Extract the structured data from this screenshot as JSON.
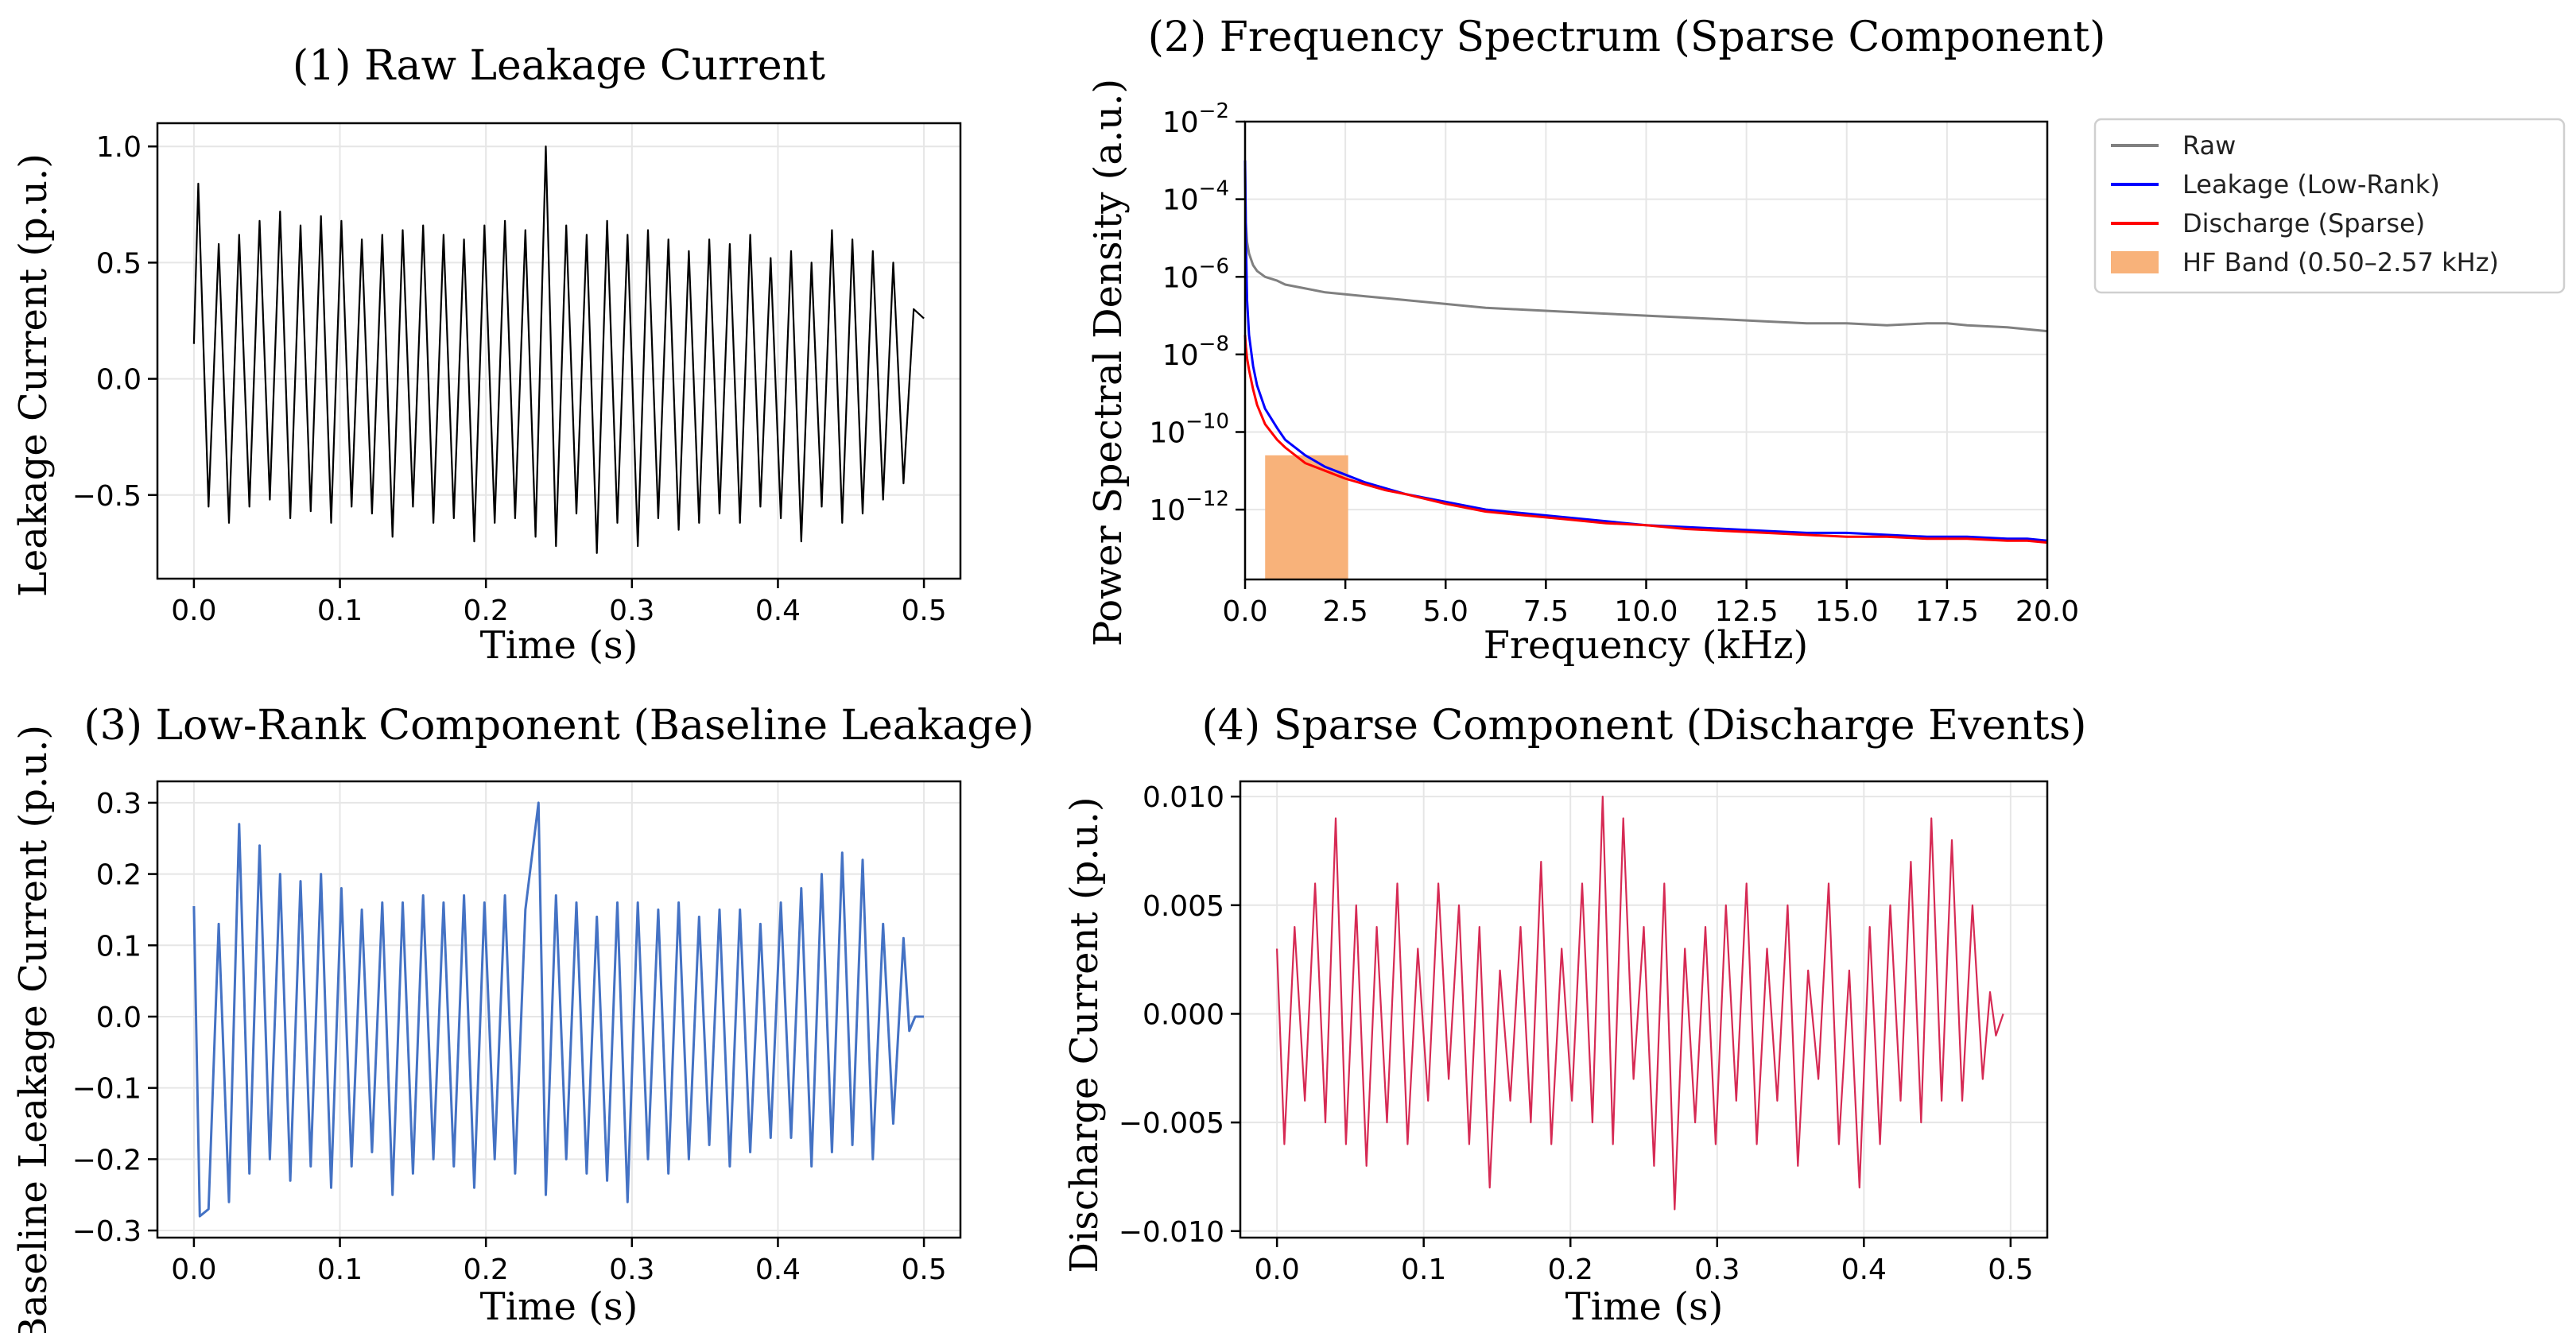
{
  "chart_data": [
    {
      "type": "line",
      "title": "(1) Raw Leakage Current",
      "xlabel": "Time (s)",
      "ylabel": "Leakage Current (p.u.)",
      "xlim": [
        -0.025,
        0.525
      ],
      "ylim": [
        -0.86,
        1.1
      ],
      "xticks": [
        0.0,
        0.1,
        0.2,
        0.3,
        0.4,
        0.5
      ],
      "xtick_labels": [
        "0.0",
        "0.1",
        "0.2",
        "0.3",
        "0.4",
        "0.5"
      ],
      "yticks": [
        -0.5,
        0.0,
        0.5,
        1.0
      ],
      "ytick_labels": [
        "−0.5",
        "0.0",
        "0.5",
        "1.0"
      ],
      "grid": true,
      "series": [
        {
          "color": "#000000",
          "x": [
            0.0,
            0.003,
            0.01,
            0.017,
            0.024,
            0.031,
            0.038,
            0.045,
            0.052,
            0.059,
            0.066,
            0.073,
            0.08,
            0.087,
            0.094,
            0.101,
            0.108,
            0.115,
            0.122,
            0.129,
            0.136,
            0.143,
            0.15,
            0.157,
            0.164,
            0.171,
            0.178,
            0.185,
            0.192,
            0.199,
            0.206,
            0.213,
            0.22,
            0.227,
            0.234,
            0.241,
            0.248,
            0.255,
            0.262,
            0.269,
            0.276,
            0.283,
            0.29,
            0.297,
            0.304,
            0.311,
            0.318,
            0.325,
            0.332,
            0.339,
            0.346,
            0.353,
            0.36,
            0.367,
            0.374,
            0.381,
            0.388,
            0.395,
            0.402,
            0.409,
            0.416,
            0.423,
            0.43,
            0.437,
            0.444,
            0.451,
            0.458,
            0.465,
            0.472,
            0.479,
            0.486,
            0.493,
            0.5
          ],
          "y": [
            0.15,
            0.84,
            -0.55,
            0.58,
            -0.62,
            0.62,
            -0.55,
            0.68,
            -0.52,
            0.72,
            -0.6,
            0.66,
            -0.57,
            0.7,
            -0.62,
            0.68,
            -0.55,
            0.6,
            -0.58,
            0.62,
            -0.68,
            0.64,
            -0.55,
            0.66,
            -0.62,
            0.62,
            -0.6,
            0.6,
            -0.7,
            0.66,
            -0.62,
            0.68,
            -0.6,
            0.64,
            -0.68,
            1.0,
            -0.72,
            0.66,
            -0.58,
            0.62,
            -0.75,
            0.68,
            -0.62,
            0.62,
            -0.72,
            0.64,
            -0.6,
            0.6,
            -0.65,
            0.55,
            -0.62,
            0.6,
            -0.58,
            0.58,
            -0.62,
            0.62,
            -0.55,
            0.52,
            -0.6,
            0.55,
            -0.7,
            0.5,
            -0.55,
            0.64,
            -0.62,
            0.6,
            -0.58,
            0.55,
            -0.52,
            0.5,
            -0.45,
            0.3,
            0.26
          ]
        }
      ]
    },
    {
      "type": "line",
      "title": "(2) Frequency Spectrum (Sparse Component)",
      "xlabel": "Frequency (kHz)",
      "ylabel": "Power Spectral Density (a.u.)",
      "yscale": "log",
      "xlim": [
        0.0,
        20.0
      ],
      "ylim_log10": [
        -13.8,
        -2.0
      ],
      "xticks": [
        0.0,
        2.5,
        5.0,
        7.5,
        10.0,
        12.5,
        15.0,
        17.5,
        20.0
      ],
      "xtick_labels": [
        "0.0",
        "2.5",
        "5.0",
        "7.5",
        "10.0",
        "12.5",
        "15.0",
        "17.5",
        "20.0"
      ],
      "yticks_log10": [
        -12,
        -10,
        -8,
        -6,
        -4,
        -2
      ],
      "ytick_base": "10",
      "ytick_exponents": [
        "−12",
        "−10",
        "−8",
        "−6",
        "−4",
        "−2"
      ],
      "grid": true,
      "legend_position": "outside-right",
      "series": [
        {
          "name": "Raw",
          "color": "#808080",
          "x": [
            0.0,
            0.02,
            0.05,
            0.1,
            0.2,
            0.3,
            0.5,
            0.8,
            1.0,
            1.5,
            2.0,
            2.5,
            3.0,
            3.5,
            4.0,
            5.0,
            6.0,
            7.0,
            8.0,
            9.0,
            10.0,
            11.0,
            12.0,
            13.0,
            14.0,
            15.0,
            16.0,
            17.0,
            17.5,
            18.0,
            19.0,
            19.5,
            20.0
          ],
          "y_log10": [
            -3.2,
            -4.6,
            -5.1,
            -5.4,
            -5.7,
            -5.85,
            -6.0,
            -6.1,
            -6.2,
            -6.3,
            -6.4,
            -6.45,
            -6.5,
            -6.55,
            -6.6,
            -6.7,
            -6.8,
            -6.85,
            -6.9,
            -6.95,
            -7.0,
            -7.05,
            -7.1,
            -7.15,
            -7.2,
            -7.2,
            -7.25,
            -7.2,
            -7.2,
            -7.25,
            -7.3,
            -7.35,
            -7.4
          ]
        },
        {
          "name": "Leakage (Low-Rank)",
          "color": "#0000ff",
          "x": [
            0.0,
            0.02,
            0.05,
            0.1,
            0.2,
            0.3,
            0.5,
            0.8,
            1.0,
            1.5,
            2.0,
            2.5,
            3.0,
            3.5,
            4.0,
            5.0,
            6.0,
            7.0,
            8.0,
            9.0,
            10.0,
            11.0,
            12.0,
            13.0,
            14.0,
            15.0,
            16.0,
            17.0,
            17.5,
            18.0,
            19.0,
            19.5,
            20.0
          ],
          "y_log10": [
            -3.0,
            -5.0,
            -6.6,
            -7.5,
            -8.3,
            -8.8,
            -9.4,
            -9.9,
            -10.2,
            -10.6,
            -10.9,
            -11.1,
            -11.3,
            -11.45,
            -11.6,
            -11.8,
            -12.0,
            -12.1,
            -12.2,
            -12.3,
            -12.4,
            -12.45,
            -12.5,
            -12.55,
            -12.6,
            -12.6,
            -12.65,
            -12.7,
            -12.7,
            -12.7,
            -12.75,
            -12.75,
            -12.8
          ]
        },
        {
          "name": "Discharge (Sparse)",
          "color": "#ff0000",
          "x": [
            0.0,
            0.02,
            0.05,
            0.1,
            0.2,
            0.3,
            0.5,
            0.8,
            1.0,
            1.5,
            2.0,
            2.5,
            3.0,
            3.5,
            4.0,
            5.0,
            6.0,
            7.0,
            8.0,
            9.0,
            10.0,
            11.0,
            12.0,
            13.0,
            14.0,
            15.0,
            16.0,
            17.0,
            17.5,
            18.0,
            19.0,
            19.5,
            20.0
          ],
          "y_log10": [
            -7.5,
            -7.8,
            -8.1,
            -8.4,
            -8.9,
            -9.3,
            -9.8,
            -10.2,
            -10.4,
            -10.8,
            -11.0,
            -11.2,
            -11.35,
            -11.5,
            -11.6,
            -11.85,
            -12.05,
            -12.15,
            -12.25,
            -12.35,
            -12.4,
            -12.5,
            -12.55,
            -12.6,
            -12.65,
            -12.7,
            -12.7,
            -12.75,
            -12.75,
            -12.75,
            -12.8,
            -12.8,
            -12.85
          ]
        }
      ],
      "bands": [
        {
          "name": "HF Band (0.50–2.57 kHz)",
          "color": "#f8b27a",
          "x0": 0.5,
          "x1": 2.57
        }
      ]
    },
    {
      "type": "line",
      "title": "(3) Low-Rank Component (Baseline Leakage)",
      "xlabel": "Time (s)",
      "ylabel": "Baseline Leakage Current (p.u.)",
      "xlim": [
        -0.025,
        0.525
      ],
      "ylim": [
        -0.31,
        0.33
      ],
      "xticks": [
        0.0,
        0.1,
        0.2,
        0.3,
        0.4,
        0.5
      ],
      "xtick_labels": [
        "0.0",
        "0.1",
        "0.2",
        "0.3",
        "0.4",
        "0.5"
      ],
      "yticks": [
        -0.3,
        -0.2,
        -0.1,
        0.0,
        0.1,
        0.2,
        0.3
      ],
      "ytick_labels": [
        "−0.3",
        "−0.2",
        "−0.1",
        "0.0",
        "0.1",
        "0.2",
        "0.3"
      ],
      "grid": true,
      "series": [
        {
          "color": "#4472c4",
          "x": [
            0.0,
            0.004,
            0.01,
            0.017,
            0.024,
            0.031,
            0.038,
            0.045,
            0.052,
            0.059,
            0.066,
            0.073,
            0.08,
            0.087,
            0.094,
            0.101,
            0.108,
            0.115,
            0.122,
            0.129,
            0.136,
            0.143,
            0.15,
            0.157,
            0.164,
            0.171,
            0.178,
            0.185,
            0.192,
            0.199,
            0.206,
            0.213,
            0.22,
            0.227,
            0.236,
            0.241,
            0.248,
            0.255,
            0.262,
            0.269,
            0.276,
            0.283,
            0.29,
            0.297,
            0.304,
            0.311,
            0.318,
            0.325,
            0.332,
            0.339,
            0.346,
            0.353,
            0.36,
            0.367,
            0.374,
            0.381,
            0.388,
            0.395,
            0.402,
            0.409,
            0.416,
            0.423,
            0.43,
            0.437,
            0.444,
            0.451,
            0.458,
            0.465,
            0.472,
            0.479,
            0.486,
            0.49,
            0.494,
            0.5
          ],
          "y": [
            0.155,
            -0.28,
            -0.27,
            0.13,
            -0.26,
            0.27,
            -0.22,
            0.24,
            -0.2,
            0.2,
            -0.23,
            0.19,
            -0.21,
            0.2,
            -0.24,
            0.18,
            -0.21,
            0.15,
            -0.19,
            0.16,
            -0.25,
            0.16,
            -0.22,
            0.17,
            -0.2,
            0.16,
            -0.21,
            0.17,
            -0.24,
            0.16,
            -0.2,
            0.17,
            -0.22,
            0.15,
            0.3,
            -0.25,
            0.17,
            -0.2,
            0.16,
            -0.22,
            0.14,
            -0.23,
            0.16,
            -0.26,
            0.16,
            -0.2,
            0.15,
            -0.22,
            0.16,
            -0.2,
            0.14,
            -0.18,
            0.15,
            -0.21,
            0.15,
            -0.19,
            0.13,
            -0.17,
            0.16,
            -0.17,
            0.18,
            -0.21,
            0.2,
            -0.19,
            0.23,
            -0.18,
            0.22,
            -0.2,
            0.13,
            -0.15,
            0.11,
            -0.02,
            0.0,
            0.0
          ]
        }
      ]
    },
    {
      "type": "line",
      "title": "(4) Sparse Component (Discharge Events)",
      "xlabel": "Time (s)",
      "ylabel": "Discharge Current (p.u.)",
      "xlim": [
        -0.025,
        0.525
      ],
      "ylim": [
        -0.0103,
        0.0107
      ],
      "xticks": [
        0.0,
        0.1,
        0.2,
        0.3,
        0.4,
        0.5
      ],
      "xtick_labels": [
        "0.0",
        "0.1",
        "0.2",
        "0.3",
        "0.4",
        "0.5"
      ],
      "yticks": [
        -0.01,
        -0.005,
        0.0,
        0.005,
        0.01
      ],
      "ytick_labels": [
        "−0.010",
        "−0.005",
        "0.000",
        "0.005",
        "0.010"
      ],
      "grid": true,
      "series": [
        {
          "color": "#d62a54",
          "x": [
            0.0,
            0.005,
            0.012,
            0.019,
            0.026,
            0.033,
            0.04,
            0.047,
            0.054,
            0.061,
            0.068,
            0.075,
            0.082,
            0.089,
            0.096,
            0.103,
            0.11,
            0.117,
            0.124,
            0.131,
            0.138,
            0.145,
            0.152,
            0.159,
            0.166,
            0.173,
            0.18,
            0.187,
            0.194,
            0.201,
            0.208,
            0.215,
            0.222,
            0.229,
            0.236,
            0.243,
            0.25,
            0.257,
            0.264,
            0.271,
            0.278,
            0.285,
            0.292,
            0.299,
            0.306,
            0.313,
            0.32,
            0.327,
            0.334,
            0.341,
            0.348,
            0.355,
            0.362,
            0.369,
            0.376,
            0.383,
            0.39,
            0.397,
            0.404,
            0.411,
            0.418,
            0.425,
            0.432,
            0.439,
            0.446,
            0.453,
            0.46,
            0.467,
            0.474,
            0.481,
            0.486,
            0.49,
            0.495
          ],
          "y": [
            0.003,
            -0.006,
            0.004,
            -0.004,
            0.006,
            -0.005,
            0.009,
            -0.006,
            0.005,
            -0.007,
            0.004,
            -0.005,
            0.006,
            -0.006,
            0.003,
            -0.004,
            0.006,
            -0.003,
            0.005,
            -0.006,
            0.004,
            -0.008,
            0.002,
            -0.004,
            0.004,
            -0.005,
            0.007,
            -0.006,
            0.003,
            -0.004,
            0.006,
            -0.005,
            0.01,
            -0.006,
            0.009,
            -0.003,
            0.004,
            -0.007,
            0.006,
            -0.009,
            0.003,
            -0.005,
            0.004,
            -0.006,
            0.005,
            -0.004,
            0.006,
            -0.006,
            0.003,
            -0.004,
            0.005,
            -0.007,
            0.002,
            -0.003,
            0.006,
            -0.006,
            0.002,
            -0.008,
            0.004,
            -0.006,
            0.005,
            -0.004,
            0.007,
            -0.005,
            0.009,
            -0.004,
            0.008,
            -0.004,
            0.005,
            -0.003,
            0.001,
            -0.001,
            0.0
          ]
        }
      ]
    }
  ]
}
